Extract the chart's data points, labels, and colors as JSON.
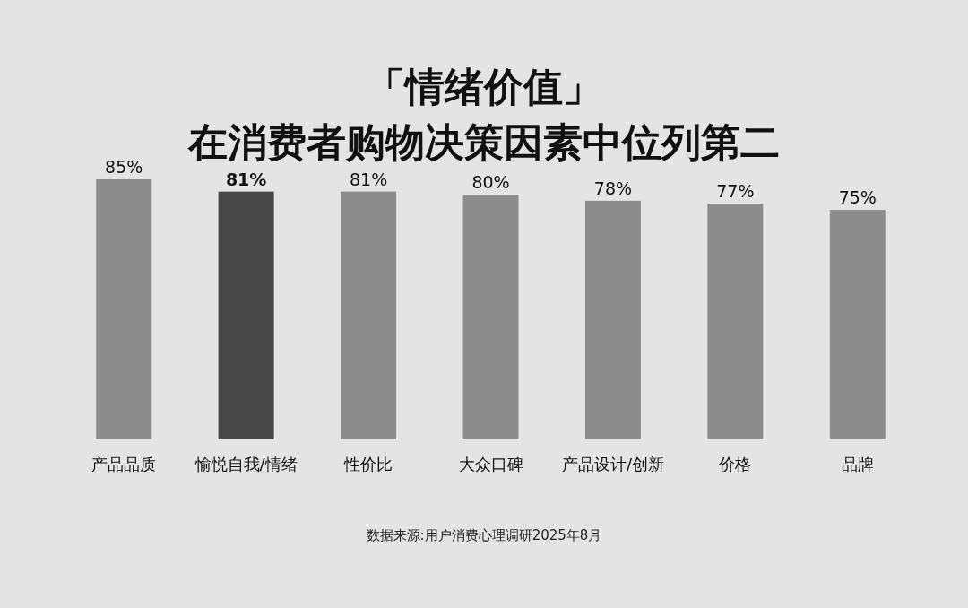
{
  "chart_data": {
    "type": "bar",
    "title": "「情绪价值」",
    "subtitle": "在消费者购物决策因素中位列第二",
    "categories": [
      "产品品质",
      "愉悦自我/情绪",
      "性价比",
      "大众口碑",
      "产品设计/创新",
      "价格",
      "品牌"
    ],
    "values": [
      85,
      81,
      81,
      80,
      78,
      77,
      75
    ],
    "colors": [
      "#8c8c8c",
      "#474747",
      "#8c8c8c",
      "#8c8c8c",
      "#8c8c8c",
      "#8c8c8c",
      "#8c8c8c"
    ],
    "value_labels": [
      "85%",
      "81%",
      "81%",
      "80%",
      "78%",
      "77%",
      "75%"
    ],
    "annotations": [
      "数据来源:用户消费心理调研2025年8月"
    ]
  }
}
